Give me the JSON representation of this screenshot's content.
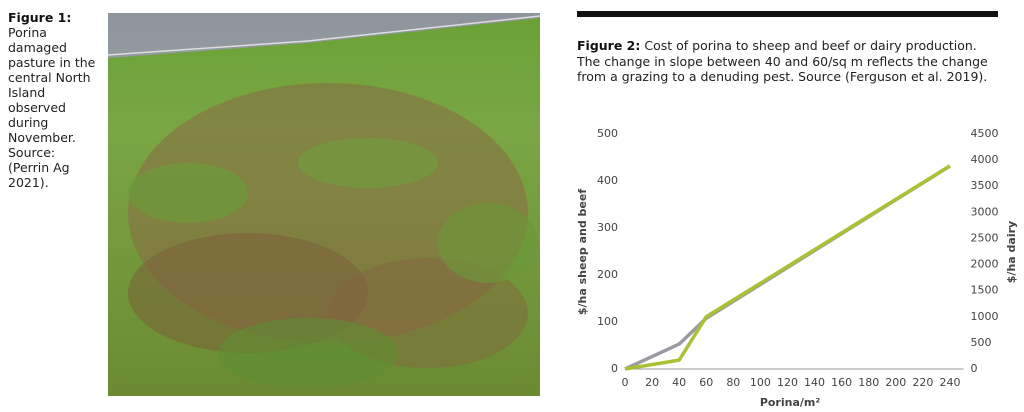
{
  "figure1": {
    "label": "Figure 1:",
    "caption": "Porina damaged pasture in the central North Island observed during November. Source: (Perrin Ag 2021)."
  },
  "figure2": {
    "label": "Figure 2:",
    "caption": "Cost of porina to sheep and beef or dairy production. The change in slope between 40 and 60/sq m reflects the change from a grazing to a denuding pest. Source (Ferguson et al. 2019)."
  },
  "chart_data": {
    "type": "line",
    "x_label": "Porina/m²",
    "y_label": "$/ha sheep and beef",
    "y2_label": "$/ha dairy",
    "x": [
      0,
      40,
      60,
      240
    ],
    "series": [
      {
        "color": "#9b9ba3",
        "values": [
          0,
          53,
          108,
          432
        ]
      },
      {
        "color": "#a9c132",
        "axis": "y2",
        "values": [
          0,
          170,
          1000,
          3890
        ]
      }
    ],
    "xlim": [
      0,
      250
    ],
    "xticks": [
      0,
      20,
      40,
      60,
      80,
      100,
      120,
      140,
      160,
      180,
      200,
      220,
      240
    ],
    "ylim": [
      0,
      500
    ],
    "yticks": [
      0,
      100,
      200,
      300,
      400,
      500
    ],
    "y2lim": [
      0,
      4500
    ],
    "y2ticks": [
      0,
      500,
      1000,
      1500,
      2000,
      2500,
      3000,
      3500,
      4000,
      4500
    ],
    "grid": false
  }
}
